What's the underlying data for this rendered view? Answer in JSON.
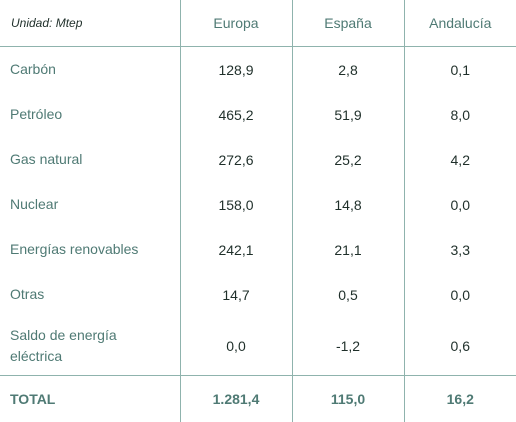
{
  "unit_label": "Unidad: Mtep",
  "columns": [
    "Europa",
    "España",
    "Andalucía"
  ],
  "rows": [
    {
      "label": "Carbón",
      "values": [
        "128,9",
        "2,8",
        "0,1"
      ]
    },
    {
      "label": "Petróleo",
      "values": [
        "465,2",
        "51,9",
        "8,0"
      ]
    },
    {
      "label": "Gas natural",
      "values": [
        "272,6",
        "25,2",
        "4,2"
      ]
    },
    {
      "label": "Nuclear",
      "values": [
        "158,0",
        "14,8",
        "0,0"
      ]
    },
    {
      "label": "Energías renovables",
      "values": [
        "242,1",
        "21,1",
        "3,3"
      ]
    },
    {
      "label": "Otras",
      "values": [
        "14,7",
        "0,5",
        "0,0"
      ]
    },
    {
      "label_line1": "Saldo de energía",
      "label_line2": "eléctrica",
      "values": [
        "0,0",
        "-1,2",
        "0,6"
      ]
    }
  ],
  "total": {
    "label": "TOTAL",
    "values": [
      "1.281,4",
      "115,0",
      "16,2"
    ]
  }
}
